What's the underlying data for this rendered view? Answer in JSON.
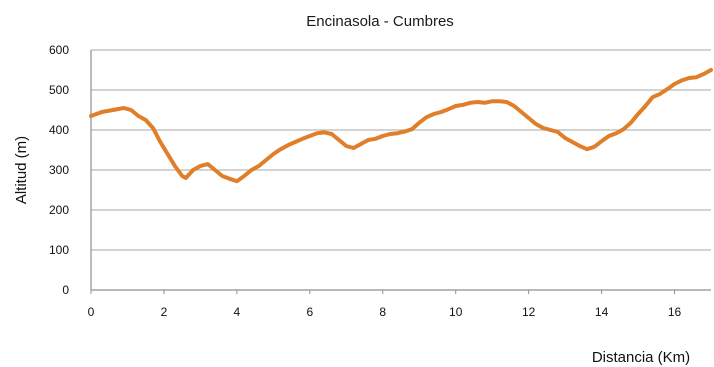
{
  "chart_data": {
    "type": "line",
    "title": "Encinasola - Cumbres",
    "xlabel": "Distancia (Km)",
    "ylabel": "Altitud (m)",
    "xlim": [
      0,
      17
    ],
    "ylim": [
      0,
      600
    ],
    "x_ticks": [
      0,
      2,
      4,
      6,
      8,
      10,
      12,
      14,
      16
    ],
    "y_ticks": [
      0,
      100,
      200,
      300,
      400,
      500,
      600
    ],
    "grid": "horizontal",
    "line_color": "#E07E2A",
    "series": [
      {
        "x": [
          0.0,
          0.3,
          0.6,
          0.9,
          1.1,
          1.3,
          1.5,
          1.7,
          1.9,
          2.1,
          2.3,
          2.5,
          2.6,
          2.8,
          3.0,
          3.2,
          3.4,
          3.6,
          3.8,
          4.0,
          4.2,
          4.4,
          4.6,
          4.8,
          5.0,
          5.2,
          5.4,
          5.6,
          5.8,
          6.0,
          6.2,
          6.4,
          6.6,
          6.8,
          7.0,
          7.2,
          7.4,
          7.6,
          7.8,
          8.0,
          8.2,
          8.4,
          8.6,
          8.8,
          9.0,
          9.2,
          9.4,
          9.6,
          9.8,
          10.0,
          10.2,
          10.4,
          10.6,
          10.8,
          11.0,
          11.2,
          11.4,
          11.6,
          11.8,
          12.0,
          12.2,
          12.4,
          12.6,
          12.8,
          13.0,
          13.2,
          13.4,
          13.6,
          13.8,
          14.0,
          14.2,
          14.4,
          14.6,
          14.8,
          15.0,
          15.2,
          15.4,
          15.6,
          15.8,
          16.0,
          16.2,
          16.4,
          16.6,
          16.8,
          17.0
        ],
        "y": [
          435,
          445,
          450,
          455,
          450,
          435,
          425,
          405,
          370,
          340,
          310,
          285,
          280,
          300,
          310,
          315,
          300,
          285,
          278,
          272,
          285,
          300,
          310,
          325,
          340,
          352,
          362,
          370,
          378,
          385,
          392,
          394,
          390,
          375,
          360,
          355,
          365,
          375,
          378,
          385,
          390,
          392,
          396,
          402,
          418,
          432,
          440,
          445,
          452,
          460,
          463,
          468,
          470,
          468,
          472,
          472,
          470,
          460,
          445,
          430,
          415,
          405,
          400,
          395,
          380,
          370,
          360,
          352,
          358,
          372,
          385,
          392,
          402,
          418,
          440,
          460,
          482,
          490,
          502,
          515,
          524,
          530,
          532,
          540,
          550
        ]
      }
    ]
  }
}
